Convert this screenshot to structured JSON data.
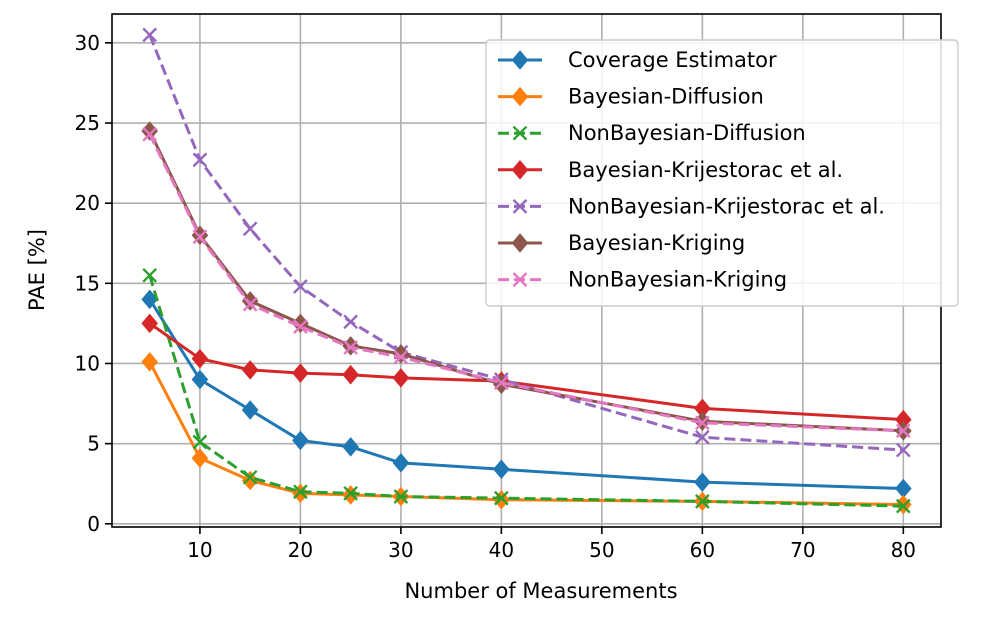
{
  "chart_data": {
    "type": "line",
    "title": "",
    "xlabel": "Number of Measurements",
    "ylabel": "PAE [%]",
    "xlim": [
      1.25,
      83.75
    ],
    "ylim": [
      -0.2,
      31.8
    ],
    "xticks": [
      10,
      20,
      30,
      40,
      50,
      60,
      70,
      80
    ],
    "yticks": [
      0,
      5,
      10,
      15,
      20,
      25,
      30
    ],
    "grid": true,
    "legend_position": "top-right",
    "x": [
      5,
      10,
      15,
      20,
      25,
      30,
      40,
      60,
      80
    ],
    "series": [
      {
        "name": "Coverage Estimator",
        "color": "#1f77b4",
        "marker": "diamond",
        "dashed": false,
        "values": [
          14.0,
          9.0,
          7.1,
          5.2,
          4.8,
          3.8,
          3.4,
          2.6,
          2.2
        ]
      },
      {
        "name": "Bayesian-Diffusion",
        "color": "#ff7f0e",
        "marker": "diamond",
        "dashed": false,
        "values": [
          10.1,
          4.1,
          2.7,
          1.9,
          1.8,
          1.7,
          1.5,
          1.4,
          1.2
        ]
      },
      {
        "name": "NonBayesian-Diffusion",
        "color": "#2ca02c",
        "marker": "x",
        "dashed": true,
        "values": [
          15.5,
          5.1,
          2.9,
          2.0,
          1.9,
          1.7,
          1.6,
          1.4,
          1.1
        ]
      },
      {
        "name": "Bayesian-Krijestorac et al.",
        "color": "#d62728",
        "marker": "diamond",
        "dashed": false,
        "values": [
          12.5,
          10.3,
          9.6,
          9.4,
          9.3,
          9.1,
          8.9,
          7.2,
          6.5
        ]
      },
      {
        "name": "NonBayesian-Krijestorac et al.",
        "color": "#9467bd",
        "marker": "x",
        "dashed": true,
        "values": [
          30.5,
          22.7,
          18.4,
          14.8,
          12.6,
          10.7,
          9.0,
          5.4,
          4.6
        ]
      },
      {
        "name": "Bayesian-Kriging",
        "color": "#8c564b",
        "marker": "diamond",
        "dashed": false,
        "values": [
          24.5,
          18.0,
          13.9,
          12.5,
          11.1,
          10.6,
          8.7,
          6.4,
          5.8
        ]
      },
      {
        "name": "NonBayesian-Kriging",
        "color": "#e377c2",
        "marker": "x",
        "dashed": true,
        "values": [
          24.3,
          17.9,
          13.7,
          12.3,
          11.0,
          10.4,
          8.8,
          6.3,
          5.8
        ]
      }
    ]
  }
}
